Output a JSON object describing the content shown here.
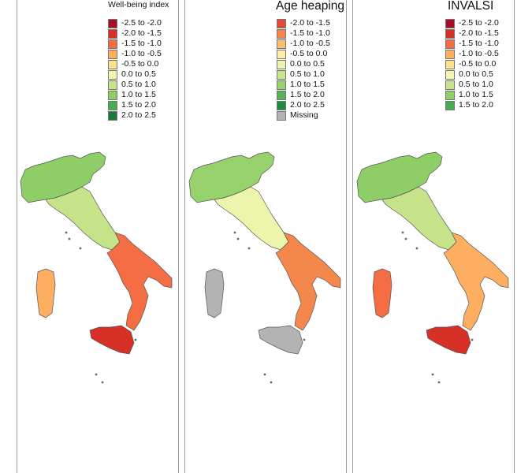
{
  "panels": [
    {
      "title": "Well-being index",
      "legend": [
        {
          "label": "-2.5 to -2.0",
          "color": "#a50f24"
        },
        {
          "label": "-2.0 to -1.5",
          "color": "#d73027"
        },
        {
          "label": "-1.5 to -1.0",
          "color": "#f46d43"
        },
        {
          "label": "-1.0 to -0.5",
          "color": "#fdae61"
        },
        {
          "label": "-0.5 to 0.0",
          "color": "#fee08b"
        },
        {
          "label": "0.0 to 0.5",
          "color": "#f3f6ae"
        },
        {
          "label": "0.5 to 1.0",
          "color": "#c6e38a"
        },
        {
          "label": "1.0 to 1.5",
          "color": "#8fcd67"
        },
        {
          "label": "1.5 to 2.0",
          "color": "#4aac51"
        },
        {
          "label": "2.0 to 2.5",
          "color": "#1a7a3a"
        }
      ]
    },
    {
      "title": "Age heaping",
      "legend": [
        {
          "label": "-2.0 to -1.5",
          "color": "#e34a33"
        },
        {
          "label": "-1.5 to -1.0",
          "color": "#f4874b"
        },
        {
          "label": "-1.0 to -0.5",
          "color": "#fdbe6f"
        },
        {
          "label": "-0.5 to 0.0",
          "color": "#feeeaa"
        },
        {
          "label": "0.0 to 0.5",
          "color": "#edf5ac"
        },
        {
          "label": "0.5 to 1.0",
          "color": "#c8e58a"
        },
        {
          "label": "1.0 to 1.5",
          "color": "#97d16b"
        },
        {
          "label": "1.5 to 2.0",
          "color": "#57b356"
        },
        {
          "label": "2.0 to 2.5",
          "color": "#1f8a42"
        },
        {
          "label": "Missing",
          "color": "#b3b3b3"
        }
      ]
    },
    {
      "title": "INVALSI",
      "legend": [
        {
          "label": "-2.5 to -2.0",
          "color": "#a50f24"
        },
        {
          "label": "-2.0 to -1.5",
          "color": "#d73027"
        },
        {
          "label": "-1.5 to -1.0",
          "color": "#f46d43"
        },
        {
          "label": "-1.0 to -0.5",
          "color": "#fdae61"
        },
        {
          "label": "-0.5 to 0.0",
          "color": "#fee08b"
        },
        {
          "label": "0.0 to 0.5",
          "color": "#f3f6ae"
        },
        {
          "label": "0.5 to 1.0",
          "color": "#c6e38a"
        },
        {
          "label": "1.0 to 1.5",
          "color": "#8fcd67"
        },
        {
          "label": "1.5 to 2.0",
          "color": "#4aac51"
        }
      ]
    }
  ]
}
